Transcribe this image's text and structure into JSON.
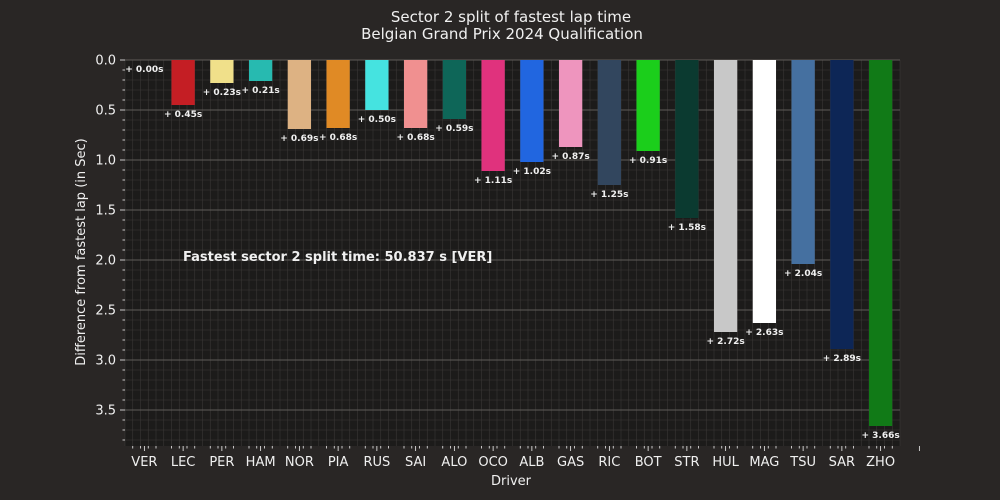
{
  "chart_data": {
    "type": "bar",
    "title": "Sector 2 split of fastest lap time",
    "subtitle": "Belgian Grand Prix 2024 Qualification",
    "xlabel": "Driver",
    "ylabel": "Difference from fastest lap (in Sec)",
    "ylim": [
      0,
      3.86
    ],
    "y_inverted": true,
    "y_ticks": [
      "0.0",
      "0.5",
      "1.0",
      "1.5",
      "2.0",
      "2.5",
      "3.0",
      "3.5"
    ],
    "grid": true,
    "annotation": "Fastest sector 2 split time: 50.837 s [VER]",
    "categories": [
      "VER",
      "LEC",
      "PER",
      "HAM",
      "NOR",
      "PIA",
      "RUS",
      "SAI",
      "ALO",
      "OCO",
      "ALB",
      "GAS",
      "RIC",
      "BOT",
      "STR",
      "HUL",
      "MAG",
      "TSU",
      "SAR",
      "ZHO"
    ],
    "values": [
      0.0,
      0.45,
      0.23,
      0.21,
      0.69,
      0.68,
      0.5,
      0.68,
      0.59,
      1.11,
      1.02,
      0.87,
      1.25,
      0.91,
      1.58,
      2.72,
      2.63,
      2.04,
      2.89,
      3.66
    ],
    "labels": [
      "+ 0.00s",
      "+ 0.45s",
      "+ 0.23s",
      "+ 0.21s",
      "+ 0.69s",
      "+ 0.68s",
      "+ 0.50s",
      "+ 0.68s",
      "+ 0.59s",
      "+ 1.11s",
      "+ 1.02s",
      "+ 0.87s",
      "+ 1.25s",
      "+ 0.91s",
      "+ 1.58s",
      "+ 2.72s",
      "+ 2.63s",
      "+ 2.04s",
      "+ 2.89s",
      "+ 3.66s"
    ],
    "colors": [
      "#3671C6",
      "#C41E24",
      "#F0E08A",
      "#27BAB0",
      "#DDB283",
      "#E08A25",
      "#45E3E0",
      "#F09090",
      "#0E6658",
      "#E0327D",
      "#2166E0",
      "#EE95BE",
      "#32465E",
      "#1BCE1B",
      "#0B3A30",
      "#C8C8C8",
      "#FFFFFF",
      "#4570A0",
      "#0D2656",
      "#117A17"
    ]
  }
}
